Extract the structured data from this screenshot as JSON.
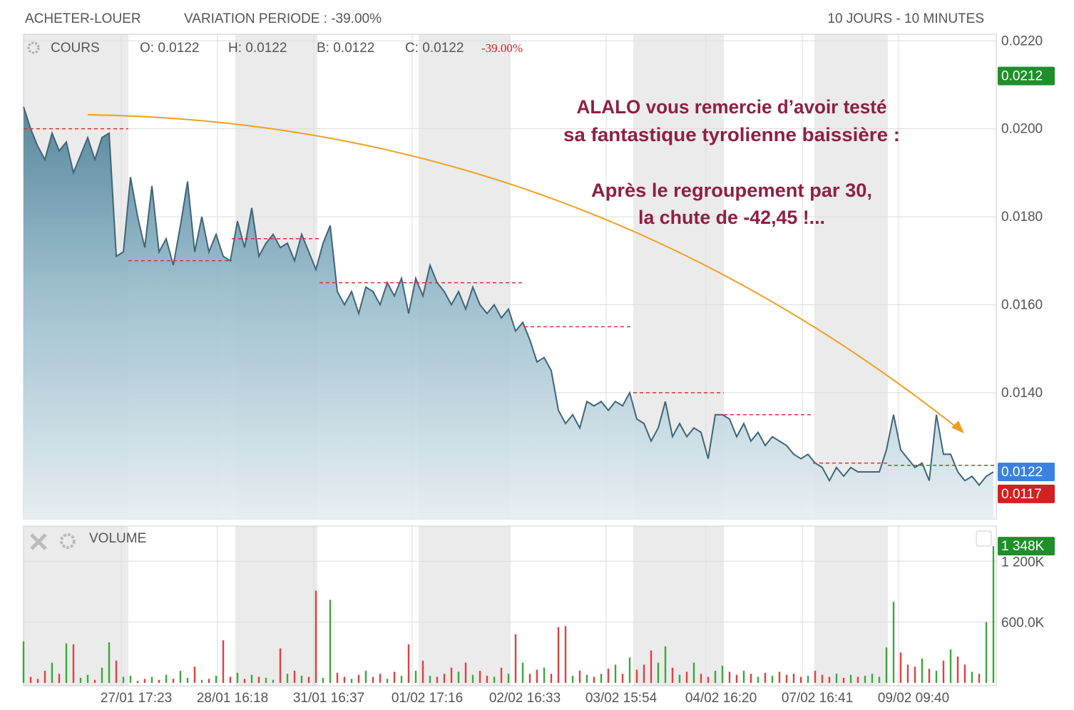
{
  "header": {
    "left": "ACHETER-LOUER",
    "variation": "VARIATION PERIODE : -39.00%",
    "right": "10 JOURS - 10 MINUTES"
  },
  "chart_data": [
    {
      "type": "area",
      "title": "COURS",
      "legend": {
        "open": "O: 0.0122",
        "high": "H: 0.0122",
        "low": "B: 0.0122",
        "close": "C: 0.0122",
        "change": "-39.00%"
      },
      "values": [
        0.0205,
        0.02,
        0.0196,
        0.0193,
        0.0199,
        0.0195,
        0.0197,
        0.019,
        0.0194,
        0.0198,
        0.0193,
        0.0198,
        0.0199,
        0.0171,
        0.0172,
        0.0189,
        0.018,
        0.0173,
        0.0187,
        0.0172,
        0.0175,
        0.0169,
        0.0178,
        0.0188,
        0.0172,
        0.018,
        0.0172,
        0.0176,
        0.0171,
        0.017,
        0.0179,
        0.0173,
        0.0182,
        0.0171,
        0.0174,
        0.0176,
        0.0173,
        0.0174,
        0.017,
        0.0176,
        0.0172,
        0.0168,
        0.0174,
        0.0178,
        0.0163,
        0.016,
        0.0163,
        0.0158,
        0.0164,
        0.0163,
        0.016,
        0.0165,
        0.0162,
        0.0166,
        0.0158,
        0.0166,
        0.0162,
        0.0169,
        0.0165,
        0.0163,
        0.016,
        0.0163,
        0.0159,
        0.0164,
        0.016,
        0.0158,
        0.016,
        0.0157,
        0.0159,
        0.0154,
        0.0156,
        0.0152,
        0.0147,
        0.0148,
        0.0145,
        0.0136,
        0.0133,
        0.0135,
        0.0132,
        0.0138,
        0.0137,
        0.0138,
        0.0136,
        0.0138,
        0.0137,
        0.014,
        0.0134,
        0.0133,
        0.0129,
        0.0132,
        0.0138,
        0.013,
        0.0133,
        0.013,
        0.0132,
        0.0131,
        0.0125,
        0.0135,
        0.0135,
        0.0134,
        0.013,
        0.0133,
        0.0129,
        0.0131,
        0.0128,
        0.013,
        0.0129,
        0.0128,
        0.0126,
        0.0125,
        0.0126,
        0.0124,
        0.0123,
        0.012,
        0.0123,
        0.0121,
        0.0123,
        0.0122,
        0.0122,
        0.0122,
        0.0122,
        0.0127,
        0.0135,
        0.0127,
        0.0125,
        0.0123,
        0.0124,
        0.012,
        0.0135,
        0.0126,
        0.0126,
        0.0122,
        0.012,
        0.0121,
        0.0119,
        0.0121,
        0.0122
      ],
      "color": "#3f6577",
      "xlim": [
        0,
        136.4
      ],
      "ylim": [
        0.01113,
        0.02215
      ],
      "yticks": [
        {
          "value": 0.022,
          "label": "0.0220"
        },
        {
          "value": 0.02,
          "label": "0.0200"
        },
        {
          "value": 0.018,
          "label": "0.0180"
        },
        {
          "value": 0.016,
          "label": "0.0160"
        },
        {
          "value": 0.014,
          "label": "0.0140"
        }
      ],
      "xticks": [
        {
          "value": 13.7,
          "label": "27/01 17:23"
        },
        {
          "value": 27.2,
          "label": "28/01 16:18"
        },
        {
          "value": 40.7,
          "label": "31/01 16:37"
        },
        {
          "value": 54.5,
          "label": "01/02 17:16"
        },
        {
          "value": 68.2,
          "label": "02/02 16:33"
        },
        {
          "value": 81.7,
          "label": "03/02 15:54"
        },
        {
          "value": 95.7,
          "label": "04/02 16:20"
        },
        {
          "value": 109.2,
          "label": "07/02 16:41"
        },
        {
          "value": 122.7,
          "label": "09/02 09:40"
        }
      ],
      "reference_lines": [
        {
          "start": 0,
          "end": 14.7,
          "value": 0.02
        },
        {
          "start": 14.7,
          "end": 29.2,
          "value": 0.017
        },
        {
          "start": 29.2,
          "end": 41.5,
          "value": 0.0175
        },
        {
          "start": 41.5,
          "end": 70.2,
          "value": 0.0165
        },
        {
          "start": 70.2,
          "end": 85.5,
          "value": 0.0155
        },
        {
          "start": 85.5,
          "end": 98.2,
          "value": 0.014
        },
        {
          "start": 98.2,
          "end": 110.7,
          "value": 0.0135
        },
        {
          "start": 110.7,
          "end": 121.2,
          "value": 0.0124
        },
        {
          "start": 121.2,
          "end": 136.4,
          "value": 0.01235
        }
      ],
      "reference_color": "#e03030",
      "shaded_periods": [
        [
          0,
          14.7
        ],
        [
          29.7,
          41.2
        ],
        [
          55.4,
          68.2
        ],
        [
          85.5,
          98.2
        ],
        [
          110.9,
          121.2
        ]
      ],
      "markers": [
        {
          "value": 0.0212,
          "color": "#1f8f2a"
        },
        {
          "value": 0.0122,
          "color": "#3b82e0"
        },
        {
          "value": 0.0117,
          "color": "#d42020"
        }
      ],
      "annotation": [
        "ALALO vous remercie d’avoir testé",
        "sa fantastique tyrolienne baissière :",
        "Après le regroupement par 30,",
        "la chute de -42,45 !..."
      ]
    },
    {
      "type": "bar",
      "title": "VOLUME",
      "values": [
        410000,
        60000,
        40000,
        120000,
        200000,
        90000,
        390000,
        380000,
        50000,
        80000,
        30000,
        150000,
        400000,
        220000,
        60000,
        70000,
        20000,
        40000,
        60000,
        30000,
        80000,
        40000,
        120000,
        50000,
        160000,
        30000,
        40000,
        70000,
        420000,
        60000,
        100000,
        40000,
        80000,
        60000,
        50000,
        30000,
        340000,
        90000,
        120000,
        70000,
        60000,
        910000,
        50000,
        820000,
        100000,
        60000,
        40000,
        80000,
        120000,
        60000,
        90000,
        40000,
        110000,
        70000,
        380000,
        120000,
        220000,
        70000,
        60000,
        90000,
        150000,
        110000,
        200000,
        80000,
        120000,
        70000,
        60000,
        150000,
        90000,
        480000,
        200000,
        90000,
        130000,
        150000,
        90000,
        550000,
        560000,
        70000,
        120000,
        80000,
        60000,
        90000,
        140000,
        180000,
        90000,
        250000,
        130000,
        180000,
        320000,
        200000,
        360000,
        150000,
        80000,
        110000,
        200000,
        90000,
        60000,
        120000,
        170000,
        110000,
        80000,
        120000,
        90000,
        60000,
        100000,
        70000,
        110000,
        80000,
        90000,
        60000,
        70000,
        120000,
        80000,
        60000,
        90000,
        50000,
        80000,
        60000,
        70000,
        90000,
        60000,
        350000,
        800000,
        300000,
        180000,
        160000,
        240000,
        140000,
        120000,
        220000,
        330000,
        260000,
        180000,
        110000,
        90000,
        600000,
        1348000
      ],
      "up_color": "#3aa83a",
      "down_color": "#e04040",
      "xlim": [
        0,
        136.4
      ],
      "ylim": [
        0,
        1546000
      ],
      "yticks": [
        {
          "value": 600000,
          "label": "600.0K"
        },
        {
          "value": 1200000,
          "label": "1 200K"
        }
      ],
      "markers": [
        {
          "value": 1348000,
          "label": "1 348K",
          "color": "#1f8f2a"
        }
      ]
    }
  ]
}
